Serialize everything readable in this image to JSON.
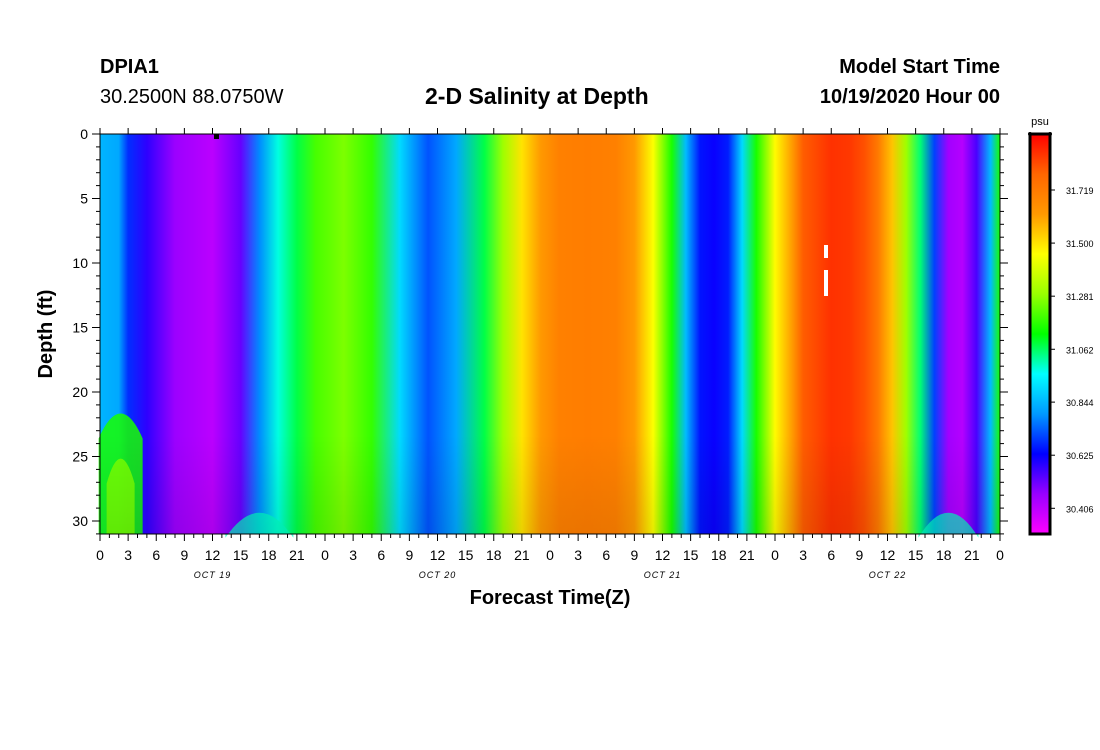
{
  "header": {
    "station": "DPIA1",
    "coords": "30.2500N 88.0750W",
    "model_start_label": "Model Start Time",
    "model_start_value": "10/19/2020 Hour 00"
  },
  "chart_data": {
    "type": "heatmap",
    "title": "2-D Salinity at Depth",
    "xlabel": "Forecast Time(Z)",
    "ylabel": "Depth (ft)",
    "x_range_hours": [
      0,
      96
    ],
    "y_range_ft": [
      0,
      31
    ],
    "y_ticks": [
      0,
      5,
      10,
      15,
      20,
      25,
      30
    ],
    "x_tick_labels": [
      "0",
      "3",
      "6",
      "9",
      "12",
      "15",
      "18",
      "21",
      "0",
      "3",
      "6",
      "9",
      "12",
      "15",
      "18",
      "21",
      "0",
      "3",
      "6",
      "9",
      "12",
      "15",
      "18",
      "21",
      "0",
      "3",
      "6",
      "9",
      "12",
      "15",
      "18",
      "21",
      "0"
    ],
    "day_labels": [
      {
        "label": "OCT 19",
        "hour": 12
      },
      {
        "label": "OCT 20",
        "hour": 36
      },
      {
        "label": "OCT 21",
        "hour": 60
      },
      {
        "label": "OCT 22",
        "hour": 84
      }
    ],
    "surface_salinity_profile": {
      "hours": [
        0,
        2,
        3,
        5,
        8,
        12,
        15,
        17,
        19,
        21,
        23,
        26,
        29,
        32,
        35,
        38,
        41,
        43,
        45,
        47,
        49,
        52,
        55,
        57,
        59,
        61,
        62.5,
        64,
        65.5,
        67,
        68.5,
        70,
        72,
        75,
        78,
        80,
        81.5,
        83,
        84.5,
        86,
        87.5,
        89,
        90.5,
        92,
        93.5,
        95,
        96
      ],
      "psu": [
        30.84,
        30.82,
        30.68,
        30.58,
        30.46,
        30.41,
        30.52,
        30.78,
        30.98,
        31.08,
        31.2,
        31.26,
        31.18,
        30.9,
        30.72,
        30.82,
        31.08,
        31.3,
        31.5,
        31.62,
        31.7,
        31.71,
        31.7,
        31.62,
        31.45,
        31.15,
        30.85,
        30.65,
        30.62,
        30.66,
        30.9,
        31.15,
        31.46,
        31.8,
        31.87,
        31.86,
        31.82,
        31.72,
        31.55,
        31.3,
        31.05,
        30.7,
        30.45,
        30.42,
        30.55,
        30.85,
        31.15
      ]
    },
    "colorbar": {
      "unit": "psu",
      "min": 30.3,
      "max": 31.95,
      "tick_values": [
        31.719,
        31.5,
        31.281,
        31.062,
        30.844,
        30.625,
        30.406
      ],
      "tick_labels": [
        "31.719",
        "31.500",
        "31.281",
        "31.062",
        "30.844",
        "30.625",
        "30.406"
      ],
      "colors": [
        "#ff00ff",
        "#9900ff",
        "#0000ff",
        "#0099ff",
        "#00ffff",
        "#00ff00",
        "#99ff00",
        "#ffff00",
        "#ff9900",
        "#ff6600",
        "#ff0000"
      ]
    }
  }
}
